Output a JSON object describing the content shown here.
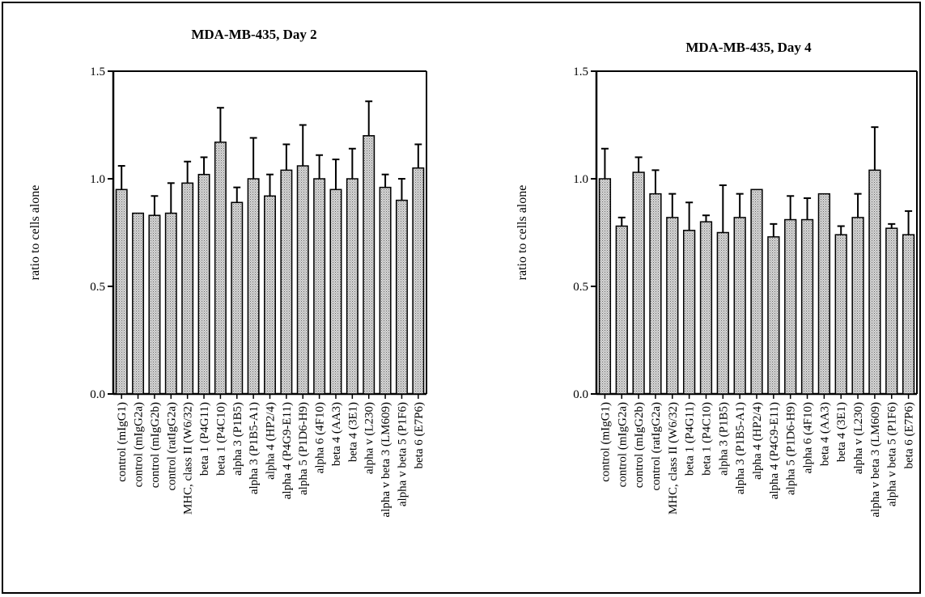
{
  "chart_data": [
    {
      "type": "bar",
      "title": "MDA-MB-435, Day 2",
      "ylabel": "ratio to cells alone",
      "ylim": [
        0,
        1.5
      ],
      "yticks": [
        "0.0",
        "0.5",
        "1.0",
        "1.5"
      ],
      "categories": [
        "control (mIgG1)",
        "control (mIgG2a)",
        "control (mIgG2b)",
        "control (ratIgG2a)",
        "MHC, class II (W6/32)",
        "beta 1 (P4G11)",
        "beta 1 (P4C10)",
        "alpha 3 (P1B5)",
        "alpha 3 (P1B5-A1)",
        "alpha 4 (HP2/4)",
        "alpha 4 (P4G9-E11)",
        "alpha 5 (P1D6-H9)",
        "alpha 6 (4F10)",
        "beta 4 (AA3)",
        "beta 4 (3E1)",
        "alpha v (L230)",
        "alpha v beta 3 (LM609)",
        "alpha v beta 5 (P1F6)",
        "beta 6 (E7P6)"
      ],
      "values": [
        0.95,
        0.84,
        0.83,
        0.84,
        0.98,
        1.02,
        1.17,
        0.89,
        1.0,
        0.92,
        1.04,
        1.06,
        1.0,
        0.95,
        1.0,
        1.2,
        0.96,
        0.9,
        1.05
      ],
      "errors": [
        0.11,
        0.0,
        0.09,
        0.14,
        0.1,
        0.08,
        0.16,
        0.07,
        0.19,
        0.1,
        0.12,
        0.19,
        0.11,
        0.14,
        0.14,
        0.16,
        0.06,
        0.1,
        0.11
      ]
    },
    {
      "type": "bar",
      "title": "MDA-MB-435, Day 4",
      "ylabel": "ratio to cells alone",
      "ylim": [
        0,
        1.5
      ],
      "yticks": [
        "0.0",
        "0.5",
        "1.0",
        "1.5"
      ],
      "categories": [
        "control (mIgG1)",
        "control (mIgG2a)",
        "control (mIgG2b)",
        "control (ratIgG2a)",
        "MHC, class II (W6/32)",
        "beta 1 (P4G11)",
        "beta 1 (P4C10)",
        "alpha 3 (P1B5)",
        "alpha 3 (P1B5-A1)",
        "alpha 4 (HP2/4)",
        "alpha 4 (P4G9-E11)",
        "alpha 5 (P1D6-H9)",
        "alpha 6 (4F10)",
        "beta 4 (AA3)",
        "beta 4 (3E1)",
        "alpha v (L230)",
        "alpha v beta 3 (LM609)",
        "alpha v beta 5 (P1F6)",
        "beta 6 (E7P6)"
      ],
      "values": [
        1.0,
        0.78,
        1.03,
        0.93,
        0.82,
        0.76,
        0.8,
        0.75,
        0.82,
        0.95,
        0.73,
        0.81,
        0.81,
        0.93,
        0.74,
        0.82,
        1.04,
        0.77,
        0.74
      ],
      "errors": [
        0.14,
        0.04,
        0.07,
        0.11,
        0.11,
        0.13,
        0.03,
        0.22,
        0.11,
        0.0,
        0.06,
        0.11,
        0.1,
        0.0,
        0.04,
        0.11,
        0.2,
        0.02,
        0.11
      ]
    }
  ]
}
